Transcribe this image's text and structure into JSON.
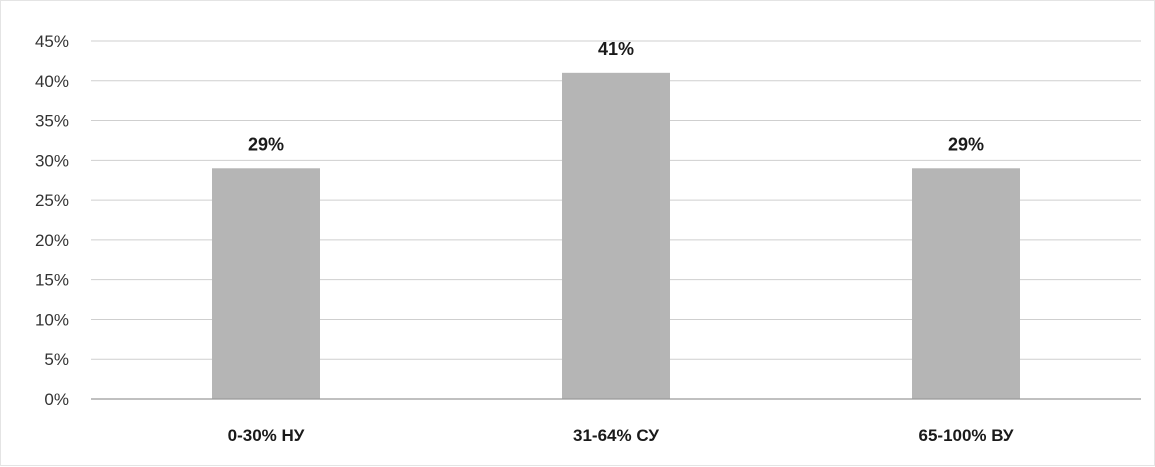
{
  "chart_data": {
    "type": "bar",
    "title": "",
    "xlabel": "",
    "ylabel": "",
    "categories": [
      "0-30% НУ",
      "31-64% СУ",
      "65-100% ВУ"
    ],
    "values": [
      29,
      41,
      29
    ],
    "data_labels": [
      "29%",
      "41%",
      "29%"
    ],
    "ylim": [
      0,
      45
    ],
    "y_ticks": [
      0,
      5,
      10,
      15,
      20,
      25,
      30,
      35,
      40,
      45
    ],
    "y_tick_labels": [
      "0%",
      "5%",
      "10%",
      "15%",
      "20%",
      "25%",
      "30%",
      "35%",
      "40%",
      "45%"
    ],
    "grid": true,
    "legend": "none",
    "colors": {
      "bar": "#b5b5b5",
      "grid": "#cfcfcf",
      "axis": "#9a9a9a"
    }
  }
}
